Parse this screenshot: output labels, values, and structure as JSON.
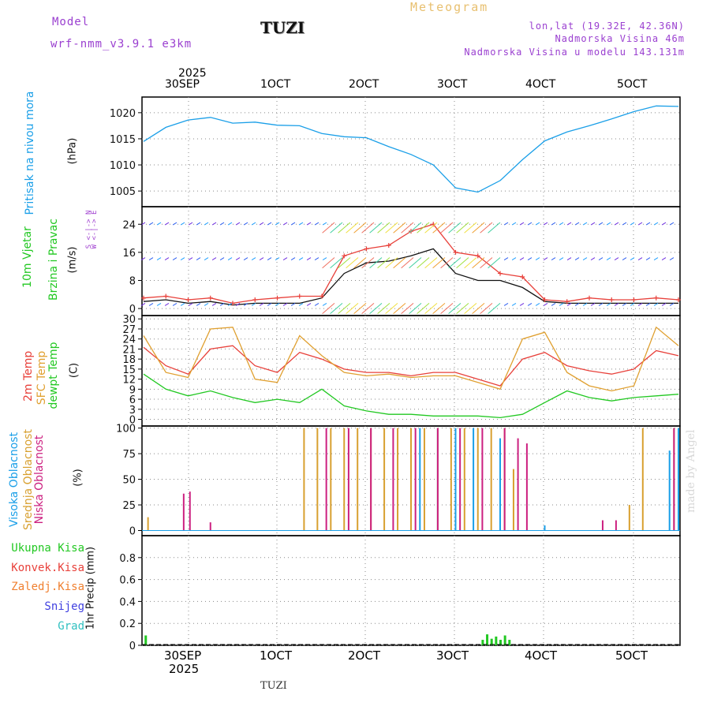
{
  "header": {
    "model_label": "Model",
    "model_name": "wrf-nmm_v3.9.1 e3km",
    "location": "TUZI",
    "meteogram": "Meteogram",
    "lonlat": "lon,lat (19.32E, 42.36N)",
    "elevation": "Nadmorska Visina 46m",
    "model_elevation": "Nadmorska Visina u modelu 143.131m"
  },
  "top_axis": {
    "year": "2025",
    "ticks": [
      "30SEP",
      "1OCT",
      "2OCT",
      "3OCT",
      "4OCT",
      "5OCT"
    ]
  },
  "bottom_axis": {
    "year": "2025",
    "ticks": [
      "30SEP",
      "1OCT",
      "2OCT",
      "3OCT",
      "4OCT",
      "5OCT"
    ]
  },
  "footer": "TUZI",
  "watermark": "made by Angel",
  "panels": {
    "pressure": {
      "label": "Pritisak na nivou mora",
      "unit": "(hPa)"
    },
    "wind": {
      "label1": "10m Vjetar",
      "label2": "Brzina i Pravac",
      "unit": "(m/s)",
      "compass": "W <-|-> E",
      "compass2": "S <-|-> N"
    },
    "temp": {
      "label1": "2m Temp",
      "label2": "SFC Temp",
      "label3": "dewpt Temp",
      "unit": "(C)"
    },
    "cloud": {
      "label1": "Visoka Oblacnost",
      "label2": "Srednja Oblacnost",
      "label3": "Niska Oblacnost",
      "unit": "(%)"
    },
    "precip": {
      "legend": [
        "Ukupna Kisa",
        "Konvek.Kisa",
        "Zaledj.Kisa",
        "Snijeg",
        "Grad"
      ],
      "unit": "1hr Precip (mm)"
    }
  },
  "colors": {
    "pressure": "#1a9fe8",
    "temp2m": "#e8403a",
    "sfc": "#e0a030",
    "dewpt": "#22c822",
    "wind_speed": "#111111",
    "gust": "#e8403a",
    "high_cloud": "#1a9fe8",
    "mid_cloud": "#d8a030",
    "low_cloud": "#cc2080",
    "precip_total": "#22c822",
    "precip_conv": "#e8403a",
    "precip_frz": "#f08030",
    "snow": "#4040e0",
    "grad": "#30c0c0"
  },
  "chart_data": [
    {
      "type": "line",
      "title": "Pritisak na nivou mora",
      "ylabel": "(hPa)",
      "ylim": [
        1002,
        1023
      ],
      "yticks": [
        1005,
        1010,
        1015,
        1020
      ],
      "xlabel": "",
      "x_days": [
        0,
        0.25,
        0.5,
        0.75,
        1,
        1.25,
        1.5,
        1.75,
        2,
        2.25,
        2.5,
        2.75,
        3,
        3.25,
        3.5,
        3.75,
        4,
        4.25,
        4.5,
        4.75,
        5,
        5.25,
        5.5,
        5.75,
        6
      ],
      "series": [
        {
          "name": "pressure",
          "values": [
            1014.5,
            1017.2,
            1018.6,
            1019.1,
            1018.0,
            1018.2,
            1017.6,
            1017.5,
            1016.0,
            1015.4,
            1015.2,
            1013.5,
            1012.0,
            1010.0,
            1005.6,
            1004.8,
            1007.0,
            1011.0,
            1014.6,
            1016.3,
            1017.5,
            1018.8,
            1020.2,
            1021.3,
            1021.2
          ]
        }
      ]
    },
    {
      "type": "line",
      "title": "10m Vjetar",
      "ylabel": "(m/s)",
      "ylim": [
        -2,
        29
      ],
      "yticks": [
        0,
        8,
        16,
        24
      ],
      "xlabel": "",
      "x_days": [
        0,
        0.25,
        0.5,
        0.75,
        1,
        1.25,
        1.5,
        1.75,
        2,
        2.25,
        2.5,
        2.75,
        3,
        3.25,
        3.5,
        3.75,
        4,
        4.25,
        4.5,
        4.75,
        5,
        5.25,
        5.5,
        5.75,
        6
      ],
      "series": [
        {
          "name": "speed",
          "values": [
            2.0,
            2.5,
            1.5,
            2.0,
            1.0,
            1.5,
            1.5,
            1.5,
            3.0,
            10.0,
            13.0,
            13.5,
            15.0,
            17.0,
            10.0,
            8.0,
            8.0,
            6.0,
            2.0,
            1.5,
            1.5,
            1.5,
            1.5,
            1.5,
            1.5
          ]
        },
        {
          "name": "gust",
          "values": [
            3.0,
            3.5,
            2.5,
            3.0,
            1.5,
            2.5,
            3.0,
            3.5,
            3.5,
            15.0,
            17.0,
            18.0,
            22.0,
            24.0,
            16.0,
            15.0,
            10.0,
            9.0,
            2.5,
            2.0,
            3.0,
            2.5,
            2.5,
            3.0,
            2.5
          ]
        }
      ]
    },
    {
      "type": "line",
      "title": "2m Temp / SFC Temp / dewpt Temp",
      "ylabel": "(C)",
      "ylim": [
        -2,
        31
      ],
      "yticks": [
        0,
        3,
        6,
        9,
        12,
        15,
        18,
        21,
        24,
        27,
        30
      ],
      "xlabel": "",
      "x_days": [
        0,
        0.25,
        0.5,
        0.75,
        1,
        1.25,
        1.5,
        1.75,
        2,
        2.25,
        2.5,
        2.75,
        3,
        3.25,
        3.5,
        3.75,
        4,
        4.25,
        4.5,
        4.75,
        5,
        5.25,
        5.5,
        5.75,
        6
      ],
      "series": [
        {
          "name": "2m Temp",
          "values": [
            21.5,
            16.0,
            13.5,
            21.0,
            22.0,
            16.0,
            14.0,
            20.0,
            18.0,
            15.0,
            14.0,
            14.0,
            13.0,
            14.0,
            14.0,
            12.0,
            10.0,
            18.0,
            20.0,
            16.0,
            14.5,
            13.5,
            15.0,
            20.5,
            19.0
          ]
        },
        {
          "name": "SFC Temp",
          "values": [
            25.0,
            14.0,
            12.5,
            27.0,
            27.5,
            12.0,
            11.0,
            25.0,
            19.0,
            14.0,
            13.0,
            13.5,
            12.5,
            13.0,
            13.0,
            11.0,
            9.0,
            24.0,
            26.0,
            14.0,
            10.0,
            8.5,
            10.0,
            27.5,
            22.0
          ]
        },
        {
          "name": "dewpt Temp",
          "values": [
            13.5,
            9.0,
            7.0,
            8.5,
            6.5,
            5.0,
            6.0,
            5.0,
            9.0,
            4.0,
            2.5,
            1.5,
            1.5,
            1.0,
            1.0,
            1.0,
            0.5,
            1.5,
            5.0,
            8.5,
            6.5,
            5.5,
            6.5,
            7.0,
            7.5
          ]
        }
      ]
    },
    {
      "type": "bar",
      "title": "Oblacnost",
      "ylabel": "(%)",
      "ylim": [
        -5,
        102
      ],
      "yticks": [
        0,
        25,
        50,
        75,
        100
      ],
      "xlabel": "",
      "series": [
        {
          "name": "Visoka Oblacnost",
          "x_days": [
            3.1,
            3.3,
            3.5,
            3.7,
            4.0,
            4.5,
            5.9,
            6.0
          ],
          "values": [
            100,
            100,
            100,
            100,
            90,
            5,
            78,
            100
          ]
        },
        {
          "name": "Srednja Oblacnost",
          "x_days": [
            0.05,
            1.8,
            1.95,
            2.1,
            2.25,
            2.4,
            2.55,
            2.7,
            2.85,
            3.0,
            3.15,
            3.3,
            3.45,
            3.6,
            3.75,
            3.9,
            4.05,
            4.15,
            5.45,
            5.6,
            5.95
          ],
          "values": [
            13,
            100,
            100,
            100,
            100,
            100,
            100,
            100,
            100,
            100,
            100,
            100,
            100,
            100,
            100,
            100,
            100,
            60,
            25,
            100,
            100
          ]
        },
        {
          "name": "Niska Oblacnost",
          "x_days": [
            0.45,
            0.52,
            0.75,
            2.05,
            2.3,
            2.55,
            2.8,
            3.05,
            3.3,
            3.55,
            3.8,
            4.05,
            4.2,
            4.3,
            5.15,
            5.3,
            5.95
          ],
          "values": [
            36,
            38,
            8,
            100,
            100,
            100,
            100,
            100,
            100,
            100,
            100,
            100,
            90,
            85,
            10,
            10,
            100
          ]
        }
      ]
    },
    {
      "type": "bar",
      "title": "1hr Precip",
      "ylabel": "1hr Precip (mm)",
      "ylim": [
        0,
        1.0
      ],
      "yticks": [
        0,
        0.2,
        0.4,
        0.6,
        0.8
      ],
      "xlabel": "",
      "series": [
        {
          "name": "Ukupna Kisa",
          "x_days": [
            0.02,
            3.8,
            3.85,
            3.9,
            3.95,
            4.0,
            4.05,
            4.1
          ],
          "values": [
            0.09,
            0.05,
            0.1,
            0.06,
            0.08,
            0.05,
            0.09,
            0.05
          ]
        }
      ]
    }
  ]
}
